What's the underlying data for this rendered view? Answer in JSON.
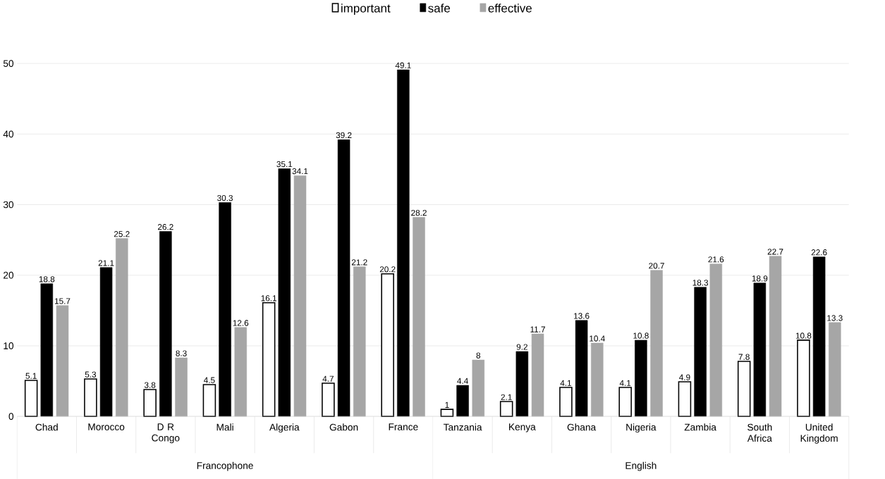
{
  "chart_data": {
    "type": "bar",
    "categories": [
      "Chad",
      "Morocco",
      "D R Congo",
      "Mali",
      "Algeria",
      "Gabon",
      "France",
      "Tanzania",
      "Kenya",
      "Ghana",
      "Nigeria",
      "Zambia",
      "South Africa",
      "United Kingdom"
    ],
    "series": [
      {
        "name": "important",
        "color": "#ffffff",
        "values": [
          5.1,
          5.3,
          3.8,
          4.5,
          16.1,
          4.7,
          20.2,
          1,
          2.1,
          4.1,
          4.1,
          4.9,
          7.8,
          10.8
        ]
      },
      {
        "name": "safe",
        "color": "#000000",
        "values": [
          18.8,
          21.1,
          26.2,
          30.3,
          35.1,
          39.2,
          49.1,
          4.4,
          9.2,
          13.6,
          10.8,
          18.3,
          18.9,
          22.6
        ]
      },
      {
        "name": "effective",
        "color": "#a6a6a6",
        "values": [
          15.7,
          25.2,
          8.3,
          12.6,
          34.1,
          21.2,
          28.2,
          8,
          11.7,
          10.4,
          20.7,
          21.6,
          22.7,
          13.3
        ]
      }
    ],
    "ylim": [
      0,
      50
    ],
    "yticks": [
      0,
      10,
      20,
      30,
      40,
      50
    ],
    "grid": "y",
    "legend": "top",
    "data_labels": true,
    "annotations": [
      "Francophone",
      "English"
    ]
  }
}
